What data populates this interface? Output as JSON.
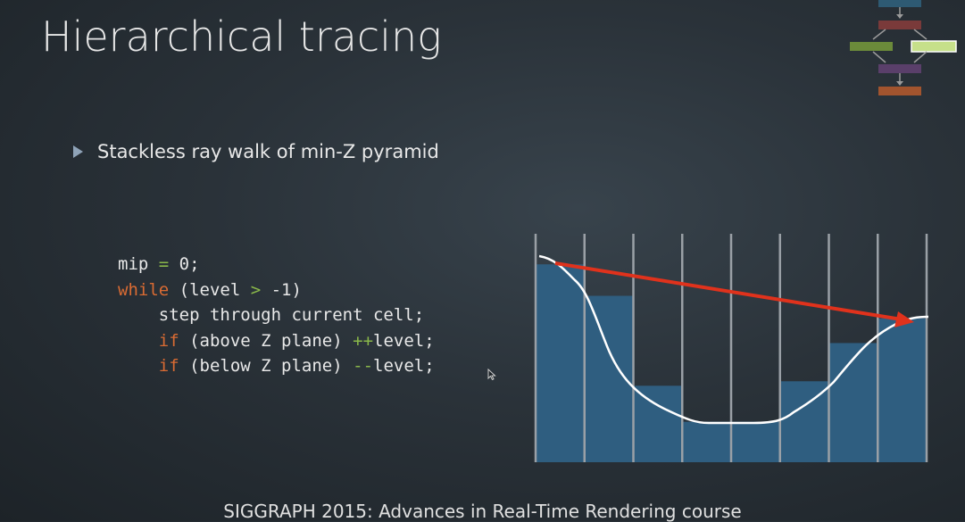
{
  "slide": {
    "title": "Hierarchical tracing",
    "bullet": "Stackless ray walk of min-Z pyramid",
    "footer": "SIGGRAPH 2015: Advances in Real-Time Rendering course"
  },
  "code": {
    "line1": {
      "a": "mip ",
      "b": "=",
      "c": " 0;"
    },
    "line2": {
      "kw": "while",
      "rest1": " (level ",
      "op": ">",
      "rest2": " -1)"
    },
    "line3": {
      "text": "    step through current cell;"
    },
    "line4": {
      "indent": "    ",
      "kw": "if",
      "rest": " (above Z plane) ",
      "op": "++",
      "tail": "level;"
    },
    "line5": {
      "indent": "    ",
      "kw": "if",
      "rest": " (below Z plane) ",
      "op": "--",
      "tail": "level;"
    }
  },
  "diagram": {
    "colors": {
      "cell": "#2f5e80",
      "grid": "#9aa0a6",
      "surface": "#ffffff",
      "ray": "#e0321c"
    },
    "cell_depths": [
      0.12,
      0.26,
      0.66,
      0.82,
      0.82,
      0.64,
      0.47,
      0.36
    ]
  },
  "mini_diagram": {
    "colors": {
      "top": "#2e5a73",
      "red": "#7a3a3a",
      "left": "#6b8a3a",
      "right": "#c6e08a",
      "purple": "#5a3f6a",
      "bottom": "#a2542e"
    }
  }
}
